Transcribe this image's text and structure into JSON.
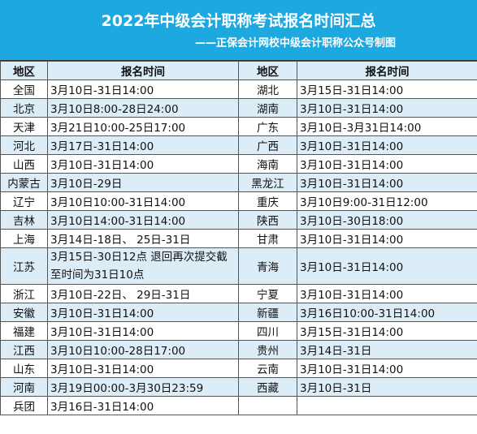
{
  "header": {
    "title": "2022年中级会计职称考试报名时间汇总",
    "subtitle": "——正保会计网校中级会计职称公众号制图"
  },
  "table": {
    "columns": [
      "地区",
      "报名时间",
      "地区",
      "报名时间"
    ],
    "rows": [
      {
        "r1": "全国",
        "t1": "3月10日-31日14:00",
        "r2": "湖北",
        "t2": "3月15日-31日14:00"
      },
      {
        "r1": "北京",
        "t1": "3月10日8:00-28日24:00",
        "r2": "湖南",
        "t2": "3月10日-31日14:00"
      },
      {
        "r1": "天津",
        "t1": "3月21日10:00-25日17:00",
        "r2": "广东",
        "t2": "3月10日-3月31日14:00"
      },
      {
        "r1": "河北",
        "t1": "3月17日-31日14:00",
        "r2": "广西",
        "t2": "3月10日-31日14:00"
      },
      {
        "r1": "山西",
        "t1": "3月10日-31日14:00",
        "r2": "海南",
        "t2": "3月10日-31日14:00"
      },
      {
        "r1": "内蒙古",
        "t1": "3月10日-29日",
        "r2": "黑龙江",
        "t2": "3月10日-31日14:00"
      },
      {
        "r1": "辽宁",
        "t1": "3月10日10:00-31日14:00",
        "r2": "重庆",
        "t2": "3月10日9:00-31日12:00"
      },
      {
        "r1": "吉林",
        "t1": "3月10日14:00-31日14:00",
        "r2": "陕西",
        "t2": "3月10日-30日18:00"
      },
      {
        "r1": "上海",
        "t1": "3月14日-18日、 25日-31日",
        "r2": "甘肃",
        "t2": "3月10日-31日14:00"
      },
      {
        "r1": "江苏",
        "t1": "3月15日-30日12点 退回再次提交截至时间为31日10点",
        "r2": "青海",
        "t2": "3月10日-31日14:00"
      },
      {
        "r1": "浙江",
        "t1": "3月10日-22日、 29日-31日",
        "r2": "宁夏",
        "t2": "3月10日-31日14:00"
      },
      {
        "r1": "安徽",
        "t1": "3月10日-31日14:00",
        "r2": "新疆",
        "t2": "3月16日10:00-31日14:00"
      },
      {
        "r1": "福建",
        "t1": "3月10日-31日14:00",
        "r2": "四川",
        "t2": "3月15日-31日14:00"
      },
      {
        "r1": "江西",
        "t1": "3月10日10:00-28日17:00",
        "r2": "贵州",
        "t2": "3月14日-31日"
      },
      {
        "r1": "山东",
        "t1": "3月10日-31日14:00",
        "r2": "云南",
        "t2": "3月10日-31日14:00"
      },
      {
        "r1": "河南",
        "t1": "3月19日00:00-3月30日23:59",
        "r2": "西藏",
        "t2": "3月10日-31日"
      },
      {
        "r1": "兵团",
        "t1": "3月16日-31日14:00",
        "r2": "",
        "t2": ""
      }
    ]
  }
}
